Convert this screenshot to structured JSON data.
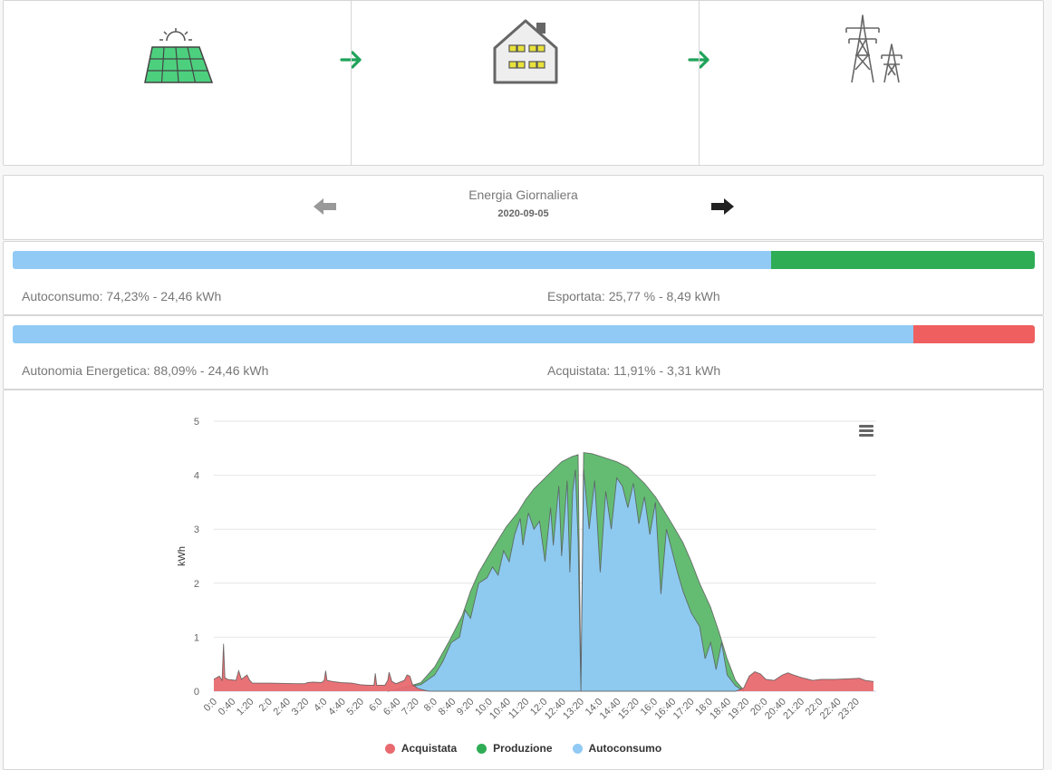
{
  "flow": {
    "solar_icon": "solar-panel-icon",
    "house_icon": "house-icon",
    "grid_icon": "power-pylon-icon",
    "arrow_icon": "arrow-right-icon",
    "arrow_color": "#1fa35a"
  },
  "nav": {
    "title": "Energia Giornaliera",
    "date": "2020-09-05",
    "prev_icon": "arrow-left-icon",
    "next_icon": "arrow-right-icon"
  },
  "bar1": {
    "segments": [
      {
        "name": "Autoconsumo",
        "percent": 74.23,
        "color": "#90caf5"
      },
      {
        "name": "Esportata",
        "percent": 25.77,
        "color": "#2fad55"
      }
    ],
    "left_label": "Autoconsumo: 74,23% - 24,46 kWh",
    "right_label": "Esportata: 25,77 % - 8,49 kWh"
  },
  "bar2": {
    "segments": [
      {
        "name": "Autonomia Energetica",
        "percent": 88.09,
        "color": "#90caf5"
      },
      {
        "name": "Acquistata",
        "percent": 11.91,
        "color": "#ef5f5f"
      }
    ],
    "left_label": "Autonomia Energetica: 88,09% - 24,46 kWh",
    "right_label": "Acquistata: 11,91% - 3,31 kWh"
  },
  "chart_menu_icon": "hamburger-menu-icon",
  "chart_data": {
    "type": "area",
    "ylabel": "kWh",
    "ylim": [
      0,
      5
    ],
    "yticks": [
      0,
      1,
      2,
      3,
      4,
      5
    ],
    "xlim": [
      0,
      24
    ],
    "x_tick_labels": [
      "0:0",
      "0:40",
      "1:20",
      "2:0",
      "2:40",
      "3:20",
      "4:0",
      "4:40",
      "5:20",
      "6:0",
      "6:40",
      "7:20",
      "8:0",
      "8:40",
      "9:20",
      "10:0",
      "10:40",
      "11:20",
      "12:0",
      "12:40",
      "13:20",
      "14:0",
      "14:40",
      "15:20",
      "16:0",
      "16:40",
      "17:20",
      "18:0",
      "18:40",
      "19:20",
      "20:0",
      "20:40",
      "21:20",
      "22:0",
      "22:40",
      "23:20"
    ],
    "grid": true,
    "legend_position": "bottom",
    "series": [
      {
        "name": "Acquistata",
        "color": "#e86a6f",
        "points": [
          [
            0.0,
            0.22
          ],
          [
            0.2,
            0.28
          ],
          [
            0.3,
            0.2
          ],
          [
            0.35,
            0.88
          ],
          [
            0.4,
            0.25
          ],
          [
            0.5,
            0.22
          ],
          [
            0.8,
            0.2
          ],
          [
            0.9,
            0.38
          ],
          [
            1.0,
            0.22
          ],
          [
            1.2,
            0.3
          ],
          [
            1.3,
            0.2
          ],
          [
            1.4,
            0.15
          ],
          [
            2.0,
            0.15
          ],
          [
            3.0,
            0.14
          ],
          [
            3.3,
            0.14
          ],
          [
            3.4,
            0.16
          ],
          [
            3.6,
            0.17
          ],
          [
            3.9,
            0.16
          ],
          [
            4.0,
            0.2
          ],
          [
            4.05,
            0.38
          ],
          [
            4.1,
            0.2
          ],
          [
            4.3,
            0.18
          ],
          [
            4.6,
            0.16
          ],
          [
            5.0,
            0.15
          ],
          [
            5.3,
            0.12
          ],
          [
            5.6,
            0.11
          ],
          [
            5.8,
            0.11
          ],
          [
            5.85,
            0.33
          ],
          [
            5.9,
            0.11
          ],
          [
            6.2,
            0.11
          ],
          [
            6.3,
            0.2
          ],
          [
            6.35,
            0.35
          ],
          [
            6.45,
            0.18
          ],
          [
            6.6,
            0.14
          ],
          [
            6.9,
            0.2
          ],
          [
            7.0,
            0.3
          ],
          [
            7.1,
            0.28
          ],
          [
            7.2,
            0.12
          ],
          [
            7.4,
            0.05
          ],
          [
            7.6,
            0.02
          ],
          [
            7.8,
            0.0
          ],
          [
            18.9,
            0.0
          ],
          [
            19.2,
            0.06
          ],
          [
            19.4,
            0.28
          ],
          [
            19.6,
            0.36
          ],
          [
            19.8,
            0.32
          ],
          [
            20.0,
            0.22
          ],
          [
            20.3,
            0.2
          ],
          [
            20.6,
            0.3
          ],
          [
            20.8,
            0.34
          ],
          [
            21.0,
            0.3
          ],
          [
            21.3,
            0.25
          ],
          [
            21.7,
            0.2
          ],
          [
            22.0,
            0.22
          ],
          [
            22.5,
            0.22
          ],
          [
            23.0,
            0.23
          ],
          [
            23.4,
            0.24
          ],
          [
            23.6,
            0.2
          ],
          [
            23.9,
            0.18
          ]
        ]
      },
      {
        "name": "Produzione",
        "color": "#5cb86b",
        "points": [
          [
            6.3,
            0.0
          ],
          [
            7.0,
            0.08
          ],
          [
            7.5,
            0.16
          ],
          [
            8.0,
            0.45
          ],
          [
            8.5,
            0.9
          ],
          [
            9.0,
            1.4
          ],
          [
            9.3,
            1.85
          ],
          [
            9.6,
            2.2
          ],
          [
            10.0,
            2.55
          ],
          [
            10.3,
            2.8
          ],
          [
            10.6,
            3.05
          ],
          [
            11.0,
            3.3
          ],
          [
            11.3,
            3.55
          ],
          [
            11.6,
            3.75
          ],
          [
            12.0,
            3.95
          ],
          [
            12.3,
            4.1
          ],
          [
            12.6,
            4.25
          ],
          [
            13.0,
            4.35
          ],
          [
            13.2,
            4.38
          ],
          [
            13.3,
            0.0
          ],
          [
            13.4,
            4.42
          ],
          [
            13.7,
            4.4
          ],
          [
            14.0,
            4.35
          ],
          [
            14.3,
            4.3
          ],
          [
            14.6,
            4.25
          ],
          [
            15.0,
            4.15
          ],
          [
            15.3,
            4.0
          ],
          [
            15.6,
            3.85
          ],
          [
            16.0,
            3.6
          ],
          [
            16.3,
            3.35
          ],
          [
            16.6,
            3.1
          ],
          [
            17.0,
            2.75
          ],
          [
            17.3,
            2.4
          ],
          [
            17.6,
            2.0
          ],
          [
            18.0,
            1.55
          ],
          [
            18.3,
            1.1
          ],
          [
            18.6,
            0.6
          ],
          [
            18.9,
            0.2
          ],
          [
            19.2,
            0.02
          ]
        ]
      },
      {
        "name": "Autoconsumo",
        "color": "#90caf5",
        "points": [
          [
            6.3,
            0.0
          ],
          [
            7.0,
            0.08
          ],
          [
            7.5,
            0.12
          ],
          [
            8.0,
            0.3
          ],
          [
            8.3,
            0.55
          ],
          [
            8.6,
            0.9
          ],
          [
            8.9,
            1.0
          ],
          [
            9.1,
            1.5
          ],
          [
            9.3,
            1.35
          ],
          [
            9.6,
            2.0
          ],
          [
            9.9,
            2.1
          ],
          [
            10.1,
            2.3
          ],
          [
            10.3,
            2.15
          ],
          [
            10.5,
            2.6
          ],
          [
            10.7,
            2.4
          ],
          [
            10.9,
            2.9
          ],
          [
            11.1,
            3.2
          ],
          [
            11.2,
            2.7
          ],
          [
            11.4,
            3.3
          ],
          [
            11.6,
            3.0
          ],
          [
            11.8,
            3.15
          ],
          [
            12.0,
            2.4
          ],
          [
            12.2,
            3.4
          ],
          [
            12.3,
            2.7
          ],
          [
            12.5,
            3.8
          ],
          [
            12.6,
            2.5
          ],
          [
            12.8,
            3.9
          ],
          [
            12.9,
            2.2
          ],
          [
            13.0,
            3.7
          ],
          [
            13.1,
            4.1
          ],
          [
            13.2,
            2.8
          ],
          [
            13.3,
            0.0
          ],
          [
            13.4,
            4.1
          ],
          [
            13.6,
            3.0
          ],
          [
            13.8,
            3.9
          ],
          [
            14.0,
            2.2
          ],
          [
            14.2,
            3.7
          ],
          [
            14.4,
            3.0
          ],
          [
            14.6,
            3.95
          ],
          [
            14.8,
            3.8
          ],
          [
            15.0,
            3.4
          ],
          [
            15.2,
            3.85
          ],
          [
            15.4,
            3.1
          ],
          [
            15.6,
            3.6
          ],
          [
            15.8,
            2.9
          ],
          [
            16.0,
            3.5
          ],
          [
            16.2,
            1.8
          ],
          [
            16.4,
            3.0
          ],
          [
            16.6,
            2.6
          ],
          [
            16.8,
            2.2
          ],
          [
            17.0,
            1.85
          ],
          [
            17.3,
            1.45
          ],
          [
            17.6,
            1.2
          ],
          [
            17.8,
            0.6
          ],
          [
            18.0,
            0.9
          ],
          [
            18.2,
            0.4
          ],
          [
            18.4,
            0.9
          ],
          [
            18.6,
            0.3
          ],
          [
            18.9,
            0.1
          ],
          [
            19.2,
            0.0
          ]
        ]
      }
    ]
  },
  "legend": [
    {
      "label": "Acquistata",
      "color": "#e86a6f"
    },
    {
      "label": "Produzione",
      "color": "#2fad55"
    },
    {
      "label": "Autoconsumo",
      "color": "#90caf5"
    }
  ]
}
